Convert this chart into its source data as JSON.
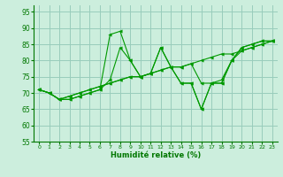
{
  "bg_color": "#cceedd",
  "grid_color": "#99ccbb",
  "line_color": "#009900",
  "marker_color": "#009900",
  "xlabel": "Humidité relative (%)",
  "xlabel_color": "#007700",
  "tick_color": "#007700",
  "ylim": [
    55,
    97
  ],
  "xlim": [
    -0.5,
    23.5
  ],
  "yticks": [
    55,
    60,
    65,
    70,
    75,
    80,
    85,
    90,
    95
  ],
  "xticks": [
    0,
    1,
    2,
    3,
    4,
    5,
    6,
    7,
    8,
    9,
    10,
    11,
    12,
    13,
    14,
    15,
    16,
    17,
    18,
    19,
    20,
    21,
    22,
    23
  ],
  "lines": [
    [
      71,
      70,
      68,
      68,
      69,
      70,
      71,
      88,
      89,
      80,
      75,
      76,
      84,
      78,
      73,
      73,
      65,
      73,
      73,
      80,
      84,
      85,
      86,
      86
    ],
    [
      71,
      70,
      68,
      68,
      69,
      70,
      71,
      74,
      84,
      80,
      75,
      76,
      84,
      78,
      73,
      73,
      65,
      73,
      73,
      80,
      84,
      85,
      86,
      86
    ],
    [
      71,
      70,
      68,
      69,
      70,
      71,
      72,
      73,
      74,
      75,
      75,
      76,
      77,
      78,
      78,
      79,
      80,
      81,
      82,
      82,
      83,
      84,
      85,
      86
    ],
    [
      71,
      70,
      68,
      69,
      70,
      71,
      72,
      73,
      74,
      75,
      75,
      76,
      77,
      78,
      78,
      79,
      73,
      73,
      74,
      80,
      83,
      84,
      85,
      86
    ]
  ]
}
